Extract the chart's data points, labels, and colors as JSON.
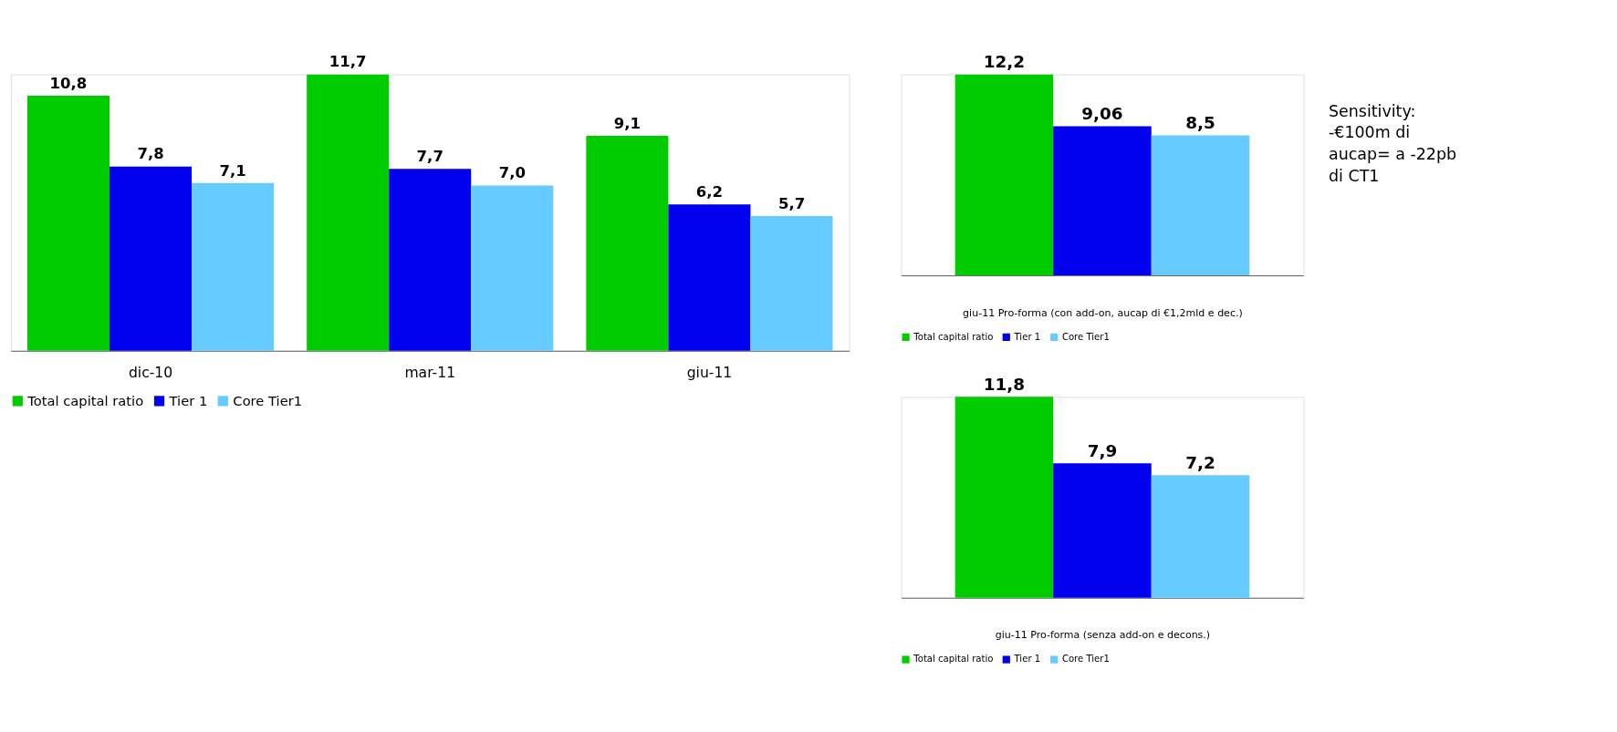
{
  "chart_data": [
    {
      "type": "bar",
      "categories": [
        "dic-10",
        "mar-11",
        "giu-11"
      ],
      "legend": "bottom",
      "series": [
        {
          "name": "Total capital ratio",
          "color": "#00cc00",
          "values": [
            10.8,
            11.7,
            9.1
          ],
          "value_labels": [
            "10,8",
            "11,7",
            "9,1"
          ]
        },
        {
          "name": "Tier 1",
          "color": "#0000ee",
          "values": [
            7.8,
            7.7,
            6.2
          ],
          "value_labels": [
            "7,8",
            "7,7",
            "6,2"
          ]
        },
        {
          "name": "Core Tier1",
          "color": "#66ccff",
          "values": [
            7.1,
            7.0,
            5.7
          ],
          "value_labels": [
            "7,1",
            "7,0",
            "5,7"
          ]
        }
      ]
    },
    {
      "type": "bar",
      "categories": [
        null
      ],
      "xlabel": "giu-11 Pro-forma (con add-on, aucap di €1,2mld e dec.)",
      "legend": "bottom",
      "annotations": [
        "Sensitivity: -€100m di aucap= a -22pb di CT1"
      ],
      "series": [
        {
          "name": "Total capital ratio",
          "color": "#00cc00",
          "values": [
            12.2
          ],
          "value_labels": [
            "12,2"
          ]
        },
        {
          "name": "Tier 1",
          "color": "#0000ee",
          "values": [
            9.06
          ],
          "value_labels": [
            "9,06"
          ]
        },
        {
          "name": "Core Tier1",
          "color": "#66ccff",
          "values": [
            8.5
          ],
          "value_labels": [
            "8,5"
          ]
        }
      ]
    },
    {
      "type": "bar",
      "categories": [
        null
      ],
      "xlabel": "giu-11 Pro-forma (senza add-on e decons.)",
      "legend": "bottom",
      "series": [
        {
          "name": "Total capital ratio",
          "color": "#00cc00",
          "values": [
            11.8
          ],
          "value_labels": [
            "11,8"
          ]
        },
        {
          "name": "Tier 1",
          "color": "#0000ee",
          "values": [
            7.9
          ],
          "value_labels": [
            "7,9"
          ]
        },
        {
          "name": "Core Tier1",
          "color": "#66ccff",
          "values": [
            7.2
          ],
          "value_labels": [
            "7,2"
          ]
        }
      ]
    }
  ]
}
